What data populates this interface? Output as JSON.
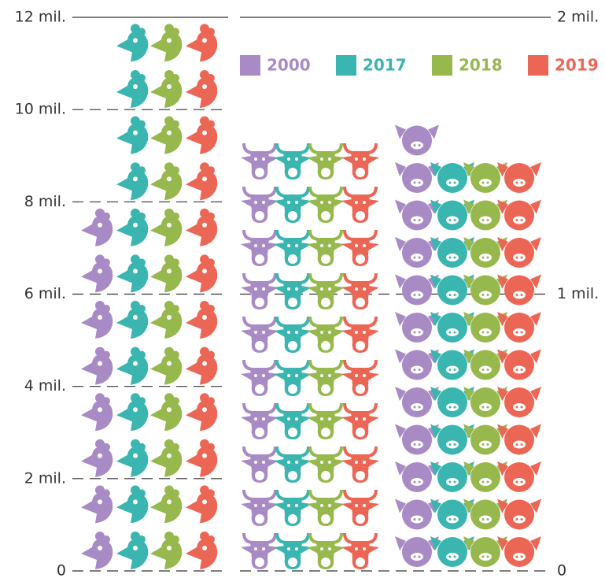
{
  "chart_data": {
    "type": "pictograph",
    "categories": [
      null,
      null,
      null
    ],
    "icons": [
      "chicken",
      "cow",
      "pig"
    ],
    "category_axes": [
      "y",
      "y",
      "y2"
    ],
    "series": [
      {
        "name": "2000",
        "color": "#a88bc4",
        "values": [
          7800000,
          9400000,
          1590000
        ]
      },
      {
        "name": "2017",
        "color": "#3ab5b0",
        "values": [
          11800000,
          9400000,
          1470000
        ]
      },
      {
        "name": "2018",
        "color": "#97b84d",
        "values": [
          11800000,
          9400000,
          1470000
        ]
      },
      {
        "name": "2019",
        "color": "#ec6656",
        "values": [
          11800000,
          9400000,
          1470000
        ]
      }
    ],
    "ylim": [
      0,
      12000000
    ],
    "yticks": [
      0,
      {
        "value": 2000000,
        "label": "2 mil."
      },
      {
        "value": 4000000,
        "label": "4 mil."
      },
      {
        "value": 6000000,
        "label": "6 mil."
      },
      {
        "value": 8000000,
        "label": "8 mil."
      },
      {
        "value": 10000000,
        "label": "10 mil."
      },
      {
        "value": 12000000,
        "label": "12 mil."
      }
    ],
    "y2lim": [
      0,
      2000000
    ],
    "y2ticks": [
      0,
      {
        "value": 1000000,
        "label": "1 mil."
      },
      {
        "value": 2000000,
        "label": "2 mil."
      }
    ],
    "legend": "top"
  }
}
